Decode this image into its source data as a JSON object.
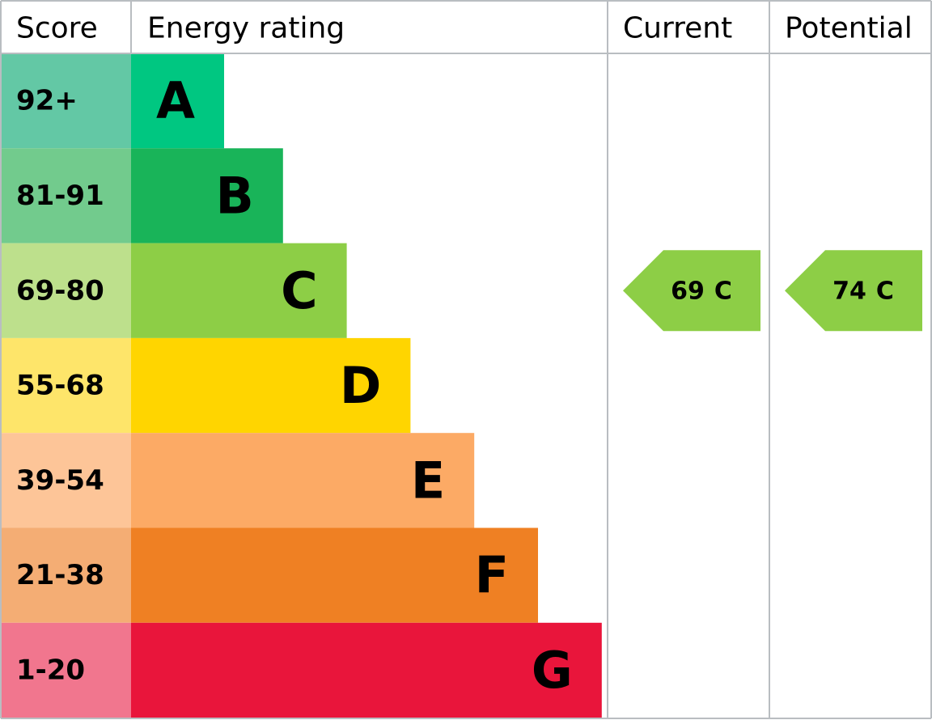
{
  "header": {
    "score": "Score",
    "rating": "Energy rating",
    "current": "Current",
    "potential": "Potential"
  },
  "rows": [
    {
      "score": "92+",
      "rating": "A",
      "color": "#00c781",
      "score_color": "#63c8a5"
    },
    {
      "score": "81-91",
      "rating": "B",
      "color": "#19b459",
      "score_color": "#72cb8d"
    },
    {
      "score": "69-80",
      "rating": "C",
      "color": "#8dce46",
      "score_color": "#bde08c"
    },
    {
      "score": "55-68",
      "rating": "D",
      "color": "#ffd500",
      "score_color": "#fee56a"
    },
    {
      "score": "39-54",
      "rating": "E",
      "color": "#fcaa65",
      "score_color": "#fdc598"
    },
    {
      "score": "21-38",
      "rating": "F",
      "color": "#ef8023",
      "score_color": "#f4ad74"
    },
    {
      "score": "1-20",
      "rating": "G",
      "color": "#e9153b",
      "score_color": "#f1768e"
    }
  ],
  "current": {
    "score": 69,
    "rating": "C"
  },
  "potential": {
    "score": 74,
    "rating": "C"
  }
}
